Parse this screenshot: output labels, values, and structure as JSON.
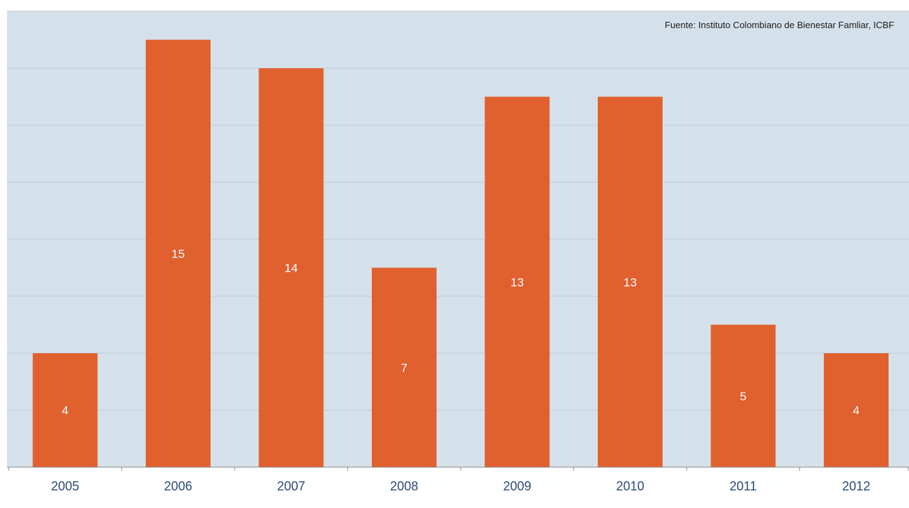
{
  "source": "Fuente: Instituto Colombiano de Bienestar Famliar, ICBF",
  "colors": {
    "plot_background": "#d5e1ea",
    "bar": "#e0602e",
    "gridline": "#bccad6",
    "axis": "#8a8a8a",
    "tick_label": "#2b4a7a",
    "bar_label": "#ffffff"
  },
  "chart_data": {
    "type": "bar",
    "categories": [
      "2005",
      "2006",
      "2007",
      "2008",
      "2009",
      "2010",
      "2011",
      "2012"
    ],
    "values": [
      4,
      15,
      14,
      7,
      13,
      13,
      5,
      4
    ],
    "title": "",
    "xlabel": "",
    "ylabel": "",
    "ylim": [
      0,
      16
    ],
    "grid": true,
    "data_labels": true,
    "legend": "none"
  }
}
